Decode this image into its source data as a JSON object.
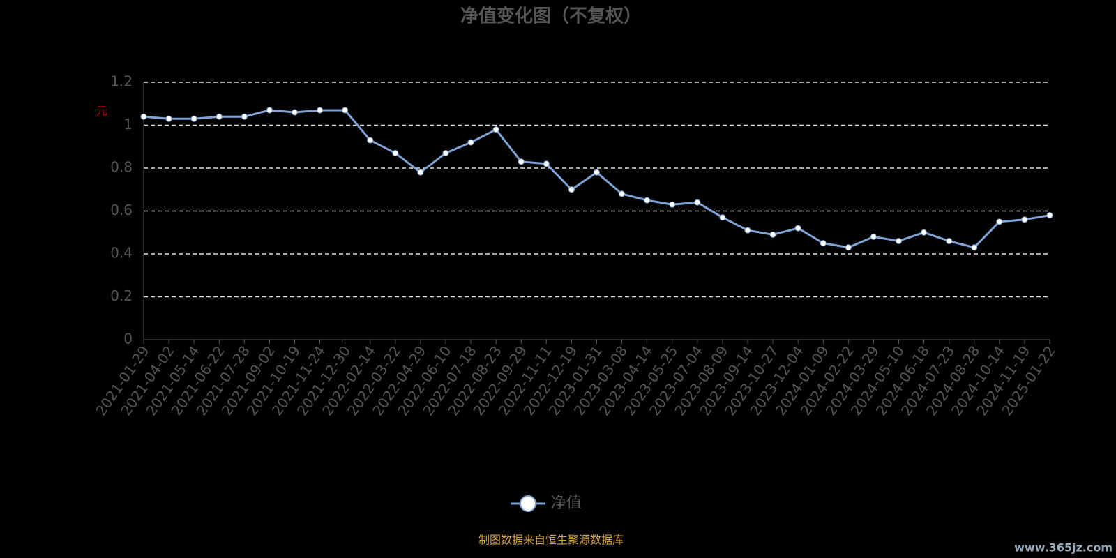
{
  "chart_data": {
    "type": "line",
    "title": "净值变化图（不复权）",
    "y_label": "元",
    "categories": [
      "2021-01-29",
      "2021-04-02",
      "2021-05-14",
      "2021-06-22",
      "2021-07-28",
      "2021-09-02",
      "2021-10-19",
      "2021-11-24",
      "2021-12-30",
      "2022-02-14",
      "2022-03-22",
      "2022-04-29",
      "2022-06-10",
      "2022-07-18",
      "2022-08-23",
      "2022-09-29",
      "2022-11-11",
      "2022-12-19",
      "2023-01-31",
      "2023-03-08",
      "2023-04-14",
      "2023-05-25",
      "2023-07-04",
      "2023-08-09",
      "2023-09-14",
      "2023-10-27",
      "2023-12-04",
      "2024-01-09",
      "2024-02-22",
      "2024-03-29",
      "2024-05-10",
      "2024-06-18",
      "2024-07-23",
      "2024-08-28",
      "2024-10-14",
      "2024-11-19",
      "2025-01-22"
    ],
    "series": [
      {
        "name": "净值",
        "color": "#7fa3d6",
        "values": [
          1.04,
          1.03,
          1.03,
          1.04,
          1.04,
          1.07,
          1.06,
          1.07,
          1.07,
          0.93,
          0.87,
          0.78,
          0.87,
          0.92,
          0.98,
          0.83,
          0.82,
          0.7,
          0.78,
          0.68,
          0.65,
          0.63,
          0.64,
          0.57,
          0.51,
          0.49,
          0.52,
          0.45,
          0.43,
          0.48,
          0.46,
          0.5,
          0.46,
          0.43,
          0.55,
          0.56,
          0.58
        ]
      }
    ],
    "ylim": [
      0,
      1.2
    ],
    "yticks": [
      0,
      0.2,
      0.4,
      0.6,
      0.8,
      1,
      1.2
    ],
    "grid": true,
    "legend": "bottom",
    "source": "制图数据来自恒生聚源数据库",
    "watermark": "www.365jz.com"
  }
}
